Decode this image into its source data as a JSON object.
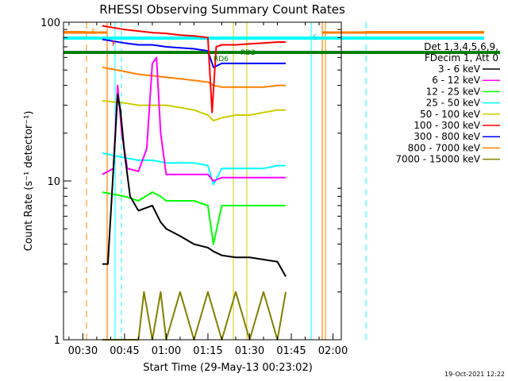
{
  "chart_data": {
    "type": "line",
    "title": "RHESSI Observing Summary Count Rates",
    "xlabel": "Start Time (29-May-13 00:23:02)",
    "ylabel": "Count Rate (s⁻¹ detector⁻¹)",
    "footer": "19-Oct-2021 12:22",
    "y_scale": "log",
    "ylim": [
      1,
      100
    ],
    "xlim": [
      "00:23:02",
      "02:03"
    ],
    "x_ticks": [
      "00:30",
      "00:45",
      "01:00",
      "01:15",
      "01:30",
      "01:45",
      "02:00"
    ],
    "y_ticks": [
      "1",
      "10",
      "100"
    ],
    "grid": false,
    "legend_position": "right",
    "legend_header": [
      "Det 1,3,4,5,6,9,",
      "FDecim 1, Att 0"
    ],
    "annotations": [
      "S",
      "F",
      "RD6",
      "RD2",
      "S"
    ],
    "series": [
      {
        "name": "3 - 6 keV",
        "color": "#000000",
        "x": [
          "00:37:00",
          "00:39:00",
          "00:41:00",
          "00:42:30",
          "00:43:30",
          "00:45:00",
          "00:47:00",
          "00:50:00",
          "00:55:00",
          "00:58:00",
          "01:00:00",
          "01:05:00",
          "01:10:00",
          "01:15:00",
          "01:17:00",
          "01:20:00",
          "01:25:00",
          "01:30:00",
          "01:35:00",
          "01:40:00",
          "01:43:00"
        ],
        "values": [
          3.0,
          3.0,
          12.0,
          35.0,
          28.0,
          15.0,
          8.0,
          6.5,
          7.0,
          5.5,
          5.0,
          4.5,
          4.0,
          3.8,
          3.6,
          3.4,
          3.3,
          3.3,
          3.2,
          3.1,
          2.5
        ]
      },
      {
        "name": "6 - 12 keV",
        "color": "#ff00ff",
        "x": [
          "00:37:00",
          "00:41:00",
          "00:42:30",
          "00:44:00",
          "00:46:00",
          "00:50:00",
          "00:53:00",
          "00:55:00",
          "00:56:30",
          "00:58:00",
          "01:00:00",
          "01:05:00",
          "01:10:00",
          "01:15:00",
          "01:17:00",
          "01:20:00",
          "01:25:00",
          "01:30:00",
          "01:35:00",
          "01:40:00",
          "01:43:00"
        ],
        "values": [
          11.0,
          12.0,
          40.0,
          20.0,
          12.0,
          11.5,
          16.0,
          55.0,
          60.0,
          20.0,
          11.0,
          11.0,
          11.0,
          11.0,
          10.0,
          10.5,
          10.5,
          10.5,
          10.5,
          10.5,
          10.5
        ]
      },
      {
        "name": "12 - 25 keV",
        "color": "#00ff00",
        "x": [
          "00:37:00",
          "00:45:00",
          "00:50:00",
          "00:55:00",
          "00:58:00",
          "01:00:00",
          "01:05:00",
          "01:10:00",
          "01:15:00",
          "01:17:00",
          "01:20:00",
          "01:25:00",
          "01:30:00",
          "01:35:00",
          "01:40:00",
          "01:43:00"
        ],
        "values": [
          8.5,
          8.0,
          7.5,
          8.5,
          8.0,
          7.5,
          7.5,
          7.5,
          7.0,
          4.0,
          7.0,
          7.0,
          7.0,
          7.0,
          7.0,
          7.0
        ]
      },
      {
        "name": "25 - 50 keV",
        "color": "#00ffff",
        "x": [
          "00:37:00",
          "00:45:00",
          "00:50:00",
          "00:55:00",
          "01:00:00",
          "01:05:00",
          "01:10:00",
          "01:15:00",
          "01:17:00",
          "01:20:00",
          "01:25:00",
          "01:30:00",
          "01:35:00",
          "01:40:00",
          "01:43:00"
        ],
        "values": [
          15.0,
          14.0,
          13.5,
          13.5,
          13.0,
          13.0,
          13.0,
          12.5,
          9.5,
          12.0,
          12.0,
          12.0,
          12.0,
          12.5,
          12.5
        ]
      },
      {
        "name": "50 - 100 keV",
        "color": "#cccc00",
        "x": [
          "00:37:00",
          "00:45:00",
          "00:50:00",
          "00:55:00",
          "01:00:00",
          "01:05:00",
          "01:10:00",
          "01:15:00",
          "01:17:00",
          "01:20:00",
          "01:25:00",
          "01:30:00",
          "01:35:00",
          "01:40:00",
          "01:43:00"
        ],
        "values": [
          32.0,
          31.0,
          30.0,
          30.0,
          30.0,
          29.0,
          28.0,
          26.0,
          24.0,
          25.0,
          26.0,
          26.0,
          27.0,
          28.0,
          28.0
        ]
      },
      {
        "name": "100 - 300 keV",
        "color": "#ff0000",
        "x": [
          "00:37:00",
          "00:45:00",
          "00:50:00",
          "00:55:00",
          "01:00:00",
          "01:05:00",
          "01:10:00",
          "01:15:00",
          "01:16:30",
          "01:18:00",
          "01:20:00",
          "01:25:00",
          "01:30:00",
          "01:35:00",
          "01:40:00",
          "01:43:00"
        ],
        "values": [
          95.0,
          90.0,
          88.0,
          86.0,
          85.0,
          83.0,
          82.0,
          80.0,
          27.0,
          70.0,
          72.0,
          72.0,
          73.0,
          74.0,
          75.0,
          75.0
        ]
      },
      {
        "name": "300 - 800 keV",
        "color": "#0000ff",
        "x": [
          "00:37:00",
          "00:45:00",
          "00:50:00",
          "00:55:00",
          "01:00:00",
          "01:05:00",
          "01:10:00",
          "01:15:00",
          "01:17:00",
          "01:20:00",
          "01:25:00",
          "01:30:00",
          "01:35:00",
          "01:40:00",
          "01:43:00"
        ],
        "values": [
          78.0,
          74.0,
          72.0,
          72.0,
          70.0,
          69.0,
          68.0,
          66.0,
          52.0,
          55.0,
          55.0,
          55.0,
          55.0,
          55.0,
          55.0
        ]
      },
      {
        "name": "800 - 7000 keV",
        "color": "#ff8000",
        "x": [
          "00:37:00",
          "00:45:00",
          "00:50:00",
          "00:55:00",
          "01:00:00",
          "01:05:00",
          "01:10:00",
          "01:15:00",
          "01:17:00",
          "01:20:00",
          "01:25:00",
          "01:30:00",
          "01:35:00",
          "01:40:00",
          "01:43:00"
        ],
        "values": [
          52.0,
          49.0,
          47.0,
          46.0,
          45.0,
          44.0,
          43.0,
          42.0,
          40.0,
          39.0,
          39.0,
          39.0,
          39.0,
          40.0,
          40.0
        ]
      },
      {
        "name": "7000 - 15000 keV",
        "color": "#808000",
        "x": [
          "00:37:00",
          "00:50:00",
          "00:52:00",
          "00:55:00",
          "00:58:00",
          "01:00:00",
          "01:05:00",
          "01:10:00",
          "01:15:00",
          "01:20:00",
          "01:25:00",
          "01:30:00",
          "01:35:00",
          "01:40:00",
          "01:43:00"
        ],
        "values": [
          1.0,
          1.0,
          2.0,
          1.0,
          2.0,
          1.0,
          2.0,
          1.0,
          2.0,
          1.0,
          2.0,
          1.0,
          2.0,
          1.0,
          2.0
        ]
      }
    ]
  }
}
